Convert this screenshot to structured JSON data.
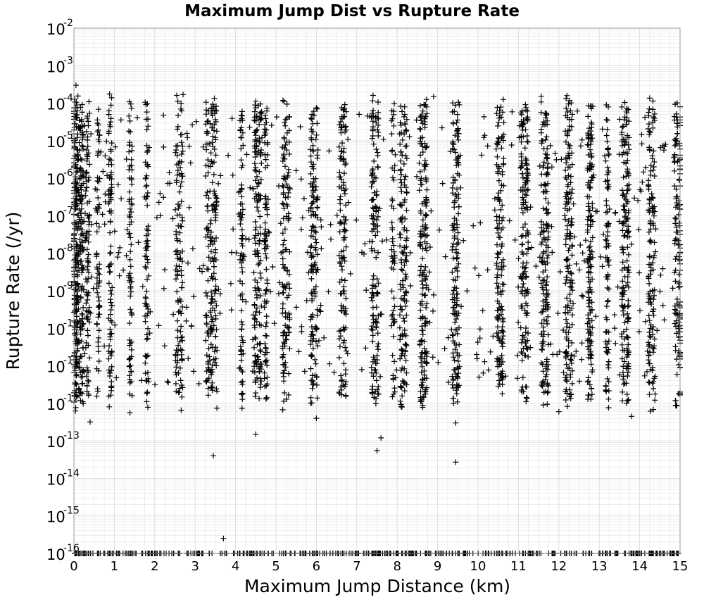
{
  "chart_data": {
    "type": "scatter",
    "title": "Maximum Jump Dist vs Rupture Rate",
    "xlabel": "Maximum Jump Distance (km)",
    "ylabel": "Rupture Rate (/yr)",
    "xlim": [
      0,
      15
    ],
    "ylim": [
      1e-16,
      0.01
    ],
    "y_scale": "log",
    "grid": true,
    "marker": "+",
    "marker_color": "#000000",
    "grid_color": "#dcdcdc",
    "x_ticks": [
      {
        "value": 0,
        "label": "0"
      },
      {
        "value": 1,
        "label": "1"
      },
      {
        "value": 2,
        "label": "2"
      },
      {
        "value": 3,
        "label": "3"
      },
      {
        "value": 4,
        "label": "4"
      },
      {
        "value": 5,
        "label": "5"
      },
      {
        "value": 6,
        "label": "6"
      },
      {
        "value": 7,
        "label": "7"
      },
      {
        "value": 8,
        "label": "8"
      },
      {
        "value": 9,
        "label": "9"
      },
      {
        "value": 10,
        "label": "10"
      },
      {
        "value": 11,
        "label": "11"
      },
      {
        "value": 12,
        "label": "12"
      },
      {
        "value": 13,
        "label": "13"
      },
      {
        "value": 14,
        "label": "14"
      },
      {
        "value": 15,
        "label": "15"
      }
    ],
    "y_ticks": [
      {
        "value": -2,
        "base": "10",
        "exp": "-2"
      },
      {
        "value": -3,
        "base": "10",
        "exp": "-3"
      },
      {
        "value": -4,
        "base": "10",
        "exp": "-4"
      },
      {
        "value": -5,
        "base": "10",
        "exp": "-5"
      },
      {
        "value": -6,
        "base": "10",
        "exp": "-6"
      },
      {
        "value": -7,
        "base": "10",
        "exp": "-7"
      },
      {
        "value": -8,
        "base": "10",
        "exp": "-8"
      },
      {
        "value": -9,
        "base": "10",
        "exp": "-9"
      },
      {
        "value": -10,
        "base": "10",
        "exp": "-10"
      },
      {
        "value": -11,
        "base": "10",
        "exp": "-11"
      },
      {
        "value": -12,
        "base": "10",
        "exp": "-12"
      },
      {
        "value": -13,
        "base": "10",
        "exp": "-13"
      },
      {
        "value": -14,
        "base": "10",
        "exp": "-14"
      },
      {
        "value": -15,
        "base": "10",
        "exp": "-15"
      },
      {
        "value": -16,
        "base": "10",
        "exp": "-16"
      }
    ],
    "series": [
      {
        "x_columns_km": [
          0,
          0.05,
          0.1,
          0.2,
          0.35,
          0.6,
          0.9,
          1.4,
          1.8,
          2.55,
          2.65,
          3.3,
          3.4,
          3.5,
          4.15,
          4.5,
          4.6,
          4.75,
          5.2,
          5.3,
          5.9,
          6.0,
          6.6,
          6.7,
          7.4,
          7.5,
          7.9,
          8.1,
          8.2,
          8.6,
          8.7,
          9.4,
          9.5,
          10.5,
          10.6,
          11.1,
          11.2,
          11.6,
          11.7,
          12.2,
          12.3,
          12.75,
          12.8,
          13.2,
          13.6,
          13.7,
          14.25,
          14.35,
          14.9,
          15.0
        ],
        "rate_range_log10": [
          -12,
          -4
        ],
        "sample_points": [
          {
            "x": 2.7,
            "y": 0.00017
          },
          {
            "x": 12.2,
            "y": 0.00016
          },
          {
            "x": 0.05,
            "y": 0.0003
          },
          {
            "x": 8.9,
            "y": 0.00015
          },
          {
            "x": 4.5,
            "y": 1.5e-13
          },
          {
            "x": 3.45,
            "y": 4e-14
          },
          {
            "x": 7.5,
            "y": 5.5e-14
          },
          {
            "x": 7.6,
            "y": 1.2e-13
          },
          {
            "x": 9.45,
            "y": 2.7e-14
          },
          {
            "x": 3.7,
            "y": 2.5e-16
          },
          {
            "x": 0.4,
            "y": 3.2e-13
          },
          {
            "x": 9.45,
            "y": 3e-13
          },
          {
            "x": 13.8,
            "y": 4.5e-13
          },
          {
            "x": 6.0,
            "y": 4e-13
          },
          {
            "x": 12.0,
            "y": 6e-13
          }
        ],
        "floor_value": 1e-16
      }
    ]
  }
}
